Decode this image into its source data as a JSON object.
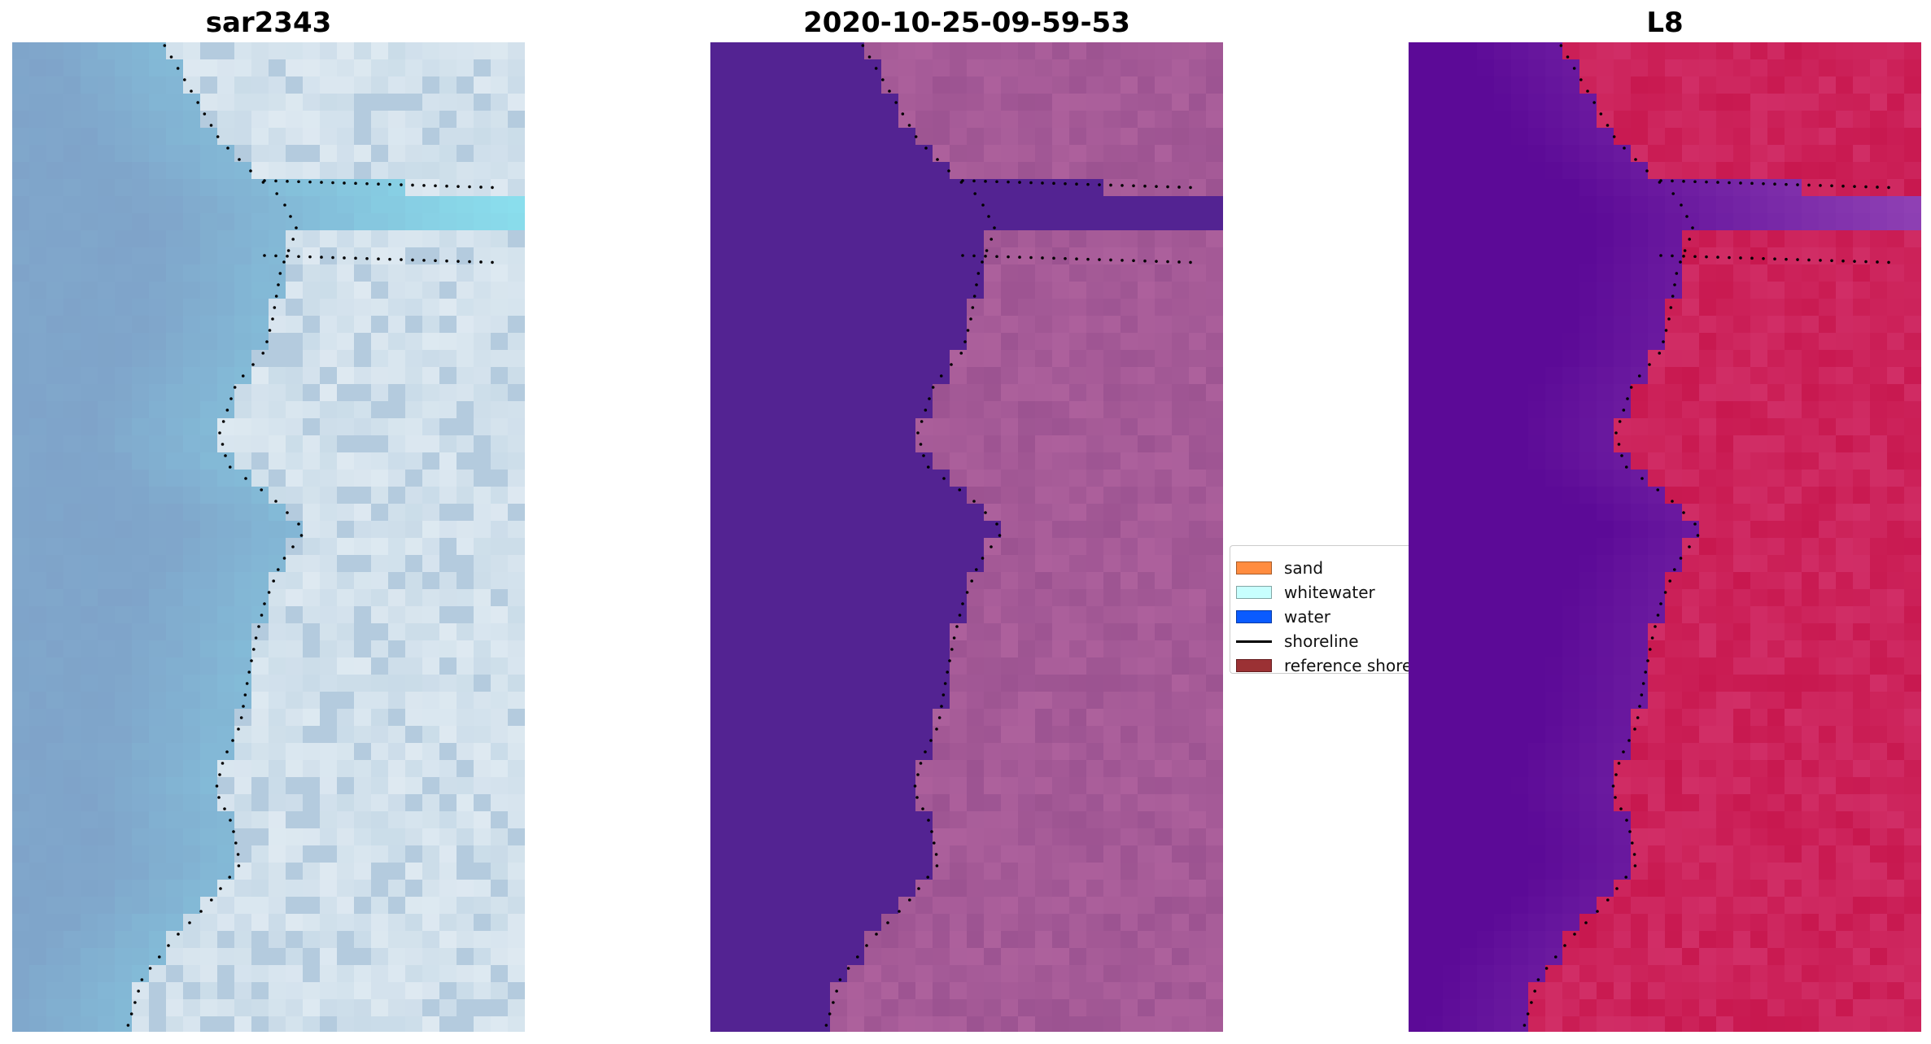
{
  "panels": [
    {
      "id": "sar",
      "title": "sar2343",
      "palette": "sar"
    },
    {
      "id": "classified",
      "title": "2020-10-25-09-59-53",
      "palette": "classified"
    },
    {
      "id": "l8",
      "title": "L8",
      "palette": "l8"
    }
  ],
  "legend": {
    "items": [
      {
        "label": "sand",
        "kind": "patch",
        "color": "#ff8c3f"
      },
      {
        "label": "whitewater",
        "kind": "patch",
        "color": "#c8fffe"
      },
      {
        "label": "water",
        "kind": "patch",
        "color": "#0a5bff"
      },
      {
        "label": "shoreline",
        "kind": "line",
        "color": "#000000"
      },
      {
        "label": "reference shoreline",
        "kind": "patch",
        "color": "#9b3134"
      }
    ]
  },
  "colors": {
    "sar_water": "#7fa3c9",
    "sar_cyan": "#86c9e0",
    "sar_land": "#c9dbe8",
    "classified_water": "#532392",
    "classified_land": "#9c5391",
    "l8_water": "#5c0a97",
    "l8_land": "#c8184f",
    "shoreline_dots": "#000000"
  }
}
